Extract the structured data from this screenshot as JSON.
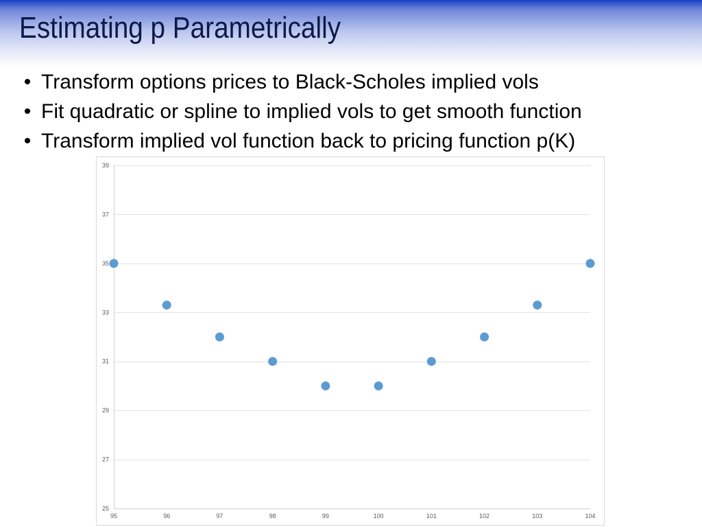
{
  "slide": {
    "title": "Estimating p Parametrically",
    "bullets": [
      "Transform options prices to Black-Scholes implied vols",
      "Fit quadratic or spline to implied vols to get smooth function",
      "Transform implied vol function back to pricing function p(K)"
    ],
    "bullet_char": "•"
  },
  "colors": {
    "title_band": "#1a3fc4",
    "point": "#5b9bd5",
    "grid": "#e3e3e3",
    "tick_text": "#595959"
  },
  "chart_data": {
    "type": "scatter",
    "title": "",
    "xlabel": "",
    "ylabel": "",
    "x": [
      95,
      96,
      97,
      98,
      99,
      100,
      101,
      102,
      103,
      104
    ],
    "y": [
      35,
      33.3,
      32,
      31,
      30,
      30,
      31,
      32,
      33.3,
      35
    ],
    "xlim": [
      95,
      104
    ],
    "ylim": [
      25,
      39
    ],
    "x_ticks": [
      95,
      96,
      97,
      98,
      99,
      100,
      101,
      102,
      103,
      104
    ],
    "y_ticks": [
      25,
      27,
      29,
      31,
      33,
      35,
      37,
      39
    ],
    "grid": "horizontal",
    "legend": "none"
  }
}
